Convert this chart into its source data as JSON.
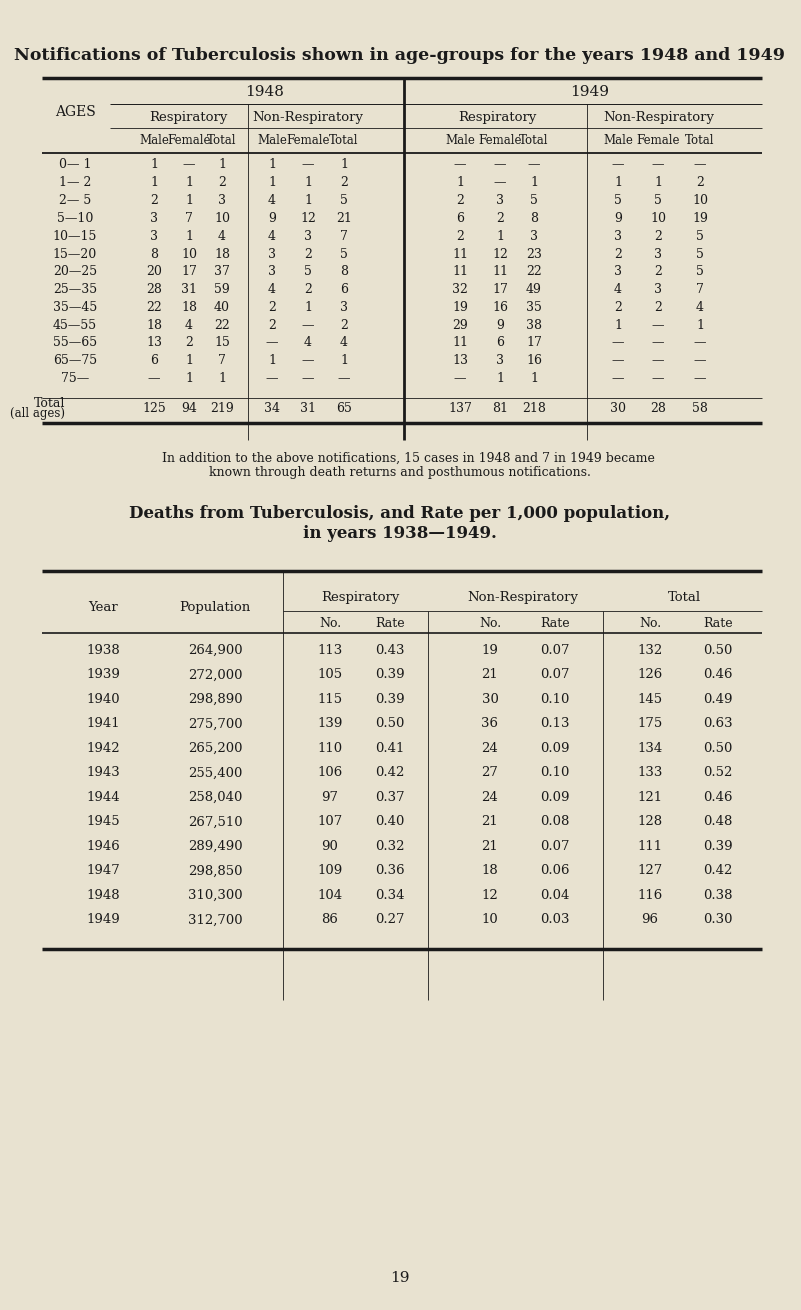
{
  "bg_color": "#e8e2d0",
  "title1": "Notifications of Tuberculosis shown in age-groups for the years 1948 and 1949",
  "title2": "Deaths from Tuberculosis, and Rate per 1,000 population,\nin years 1938—1949.",
  "footnote": "    In addition to the above notifications, 15 cases in 1948 and 7 in 1949 became\nknown through death returns and posthumous notifications.",
  "page_number": "19",
  "table1": {
    "ages": [
      "0— 1",
      "1— 2",
      "2— 5",
      "5—10",
      "10—15",
      "15—20",
      "20—25",
      "25—35",
      "35—45",
      "45—55",
      "55—65",
      "65—75",
      "75—"
    ],
    "data_1948_resp": [
      [
        "1",
        "—",
        "1"
      ],
      [
        "1",
        "1",
        "2"
      ],
      [
        "2",
        "1",
        "3"
      ],
      [
        "3",
        "7",
        "10"
      ],
      [
        "3",
        "1",
        "4"
      ],
      [
        "8",
        "10",
        "18"
      ],
      [
        "20",
        "17",
        "37"
      ],
      [
        "28",
        "31",
        "59"
      ],
      [
        "22",
        "18",
        "40"
      ],
      [
        "18",
        "4",
        "22"
      ],
      [
        "13",
        "2",
        "15"
      ],
      [
        "6",
        "1",
        "7"
      ],
      [
        "—",
        "1",
        "1"
      ]
    ],
    "data_1948_nonresp": [
      [
        "1",
        "—",
        "1"
      ],
      [
        "1",
        "1",
        "2"
      ],
      [
        "4",
        "1",
        "5"
      ],
      [
        "9",
        "12",
        "21"
      ],
      [
        "4",
        "3",
        "7"
      ],
      [
        "3",
        "2",
        "5"
      ],
      [
        "3",
        "5",
        "8"
      ],
      [
        "4",
        "2",
        "6"
      ],
      [
        "2",
        "1",
        "3"
      ],
      [
        "2",
        "—",
        "2"
      ],
      [
        "—",
        "4",
        "4"
      ],
      [
        "1",
        "—",
        "1"
      ],
      [
        "—",
        "—",
        "—"
      ]
    ],
    "data_1949_resp": [
      [
        "—",
        "—",
        "—"
      ],
      [
        "1",
        "—",
        "1"
      ],
      [
        "2",
        "3",
        "5"
      ],
      [
        "6",
        "2",
        "8"
      ],
      [
        "2",
        "1",
        "3"
      ],
      [
        "11",
        "12",
        "23"
      ],
      [
        "11",
        "11",
        "22"
      ],
      [
        "32",
        "17",
        "49"
      ],
      [
        "19",
        "16",
        "35"
      ],
      [
        "29",
        "9",
        "38"
      ],
      [
        "11",
        "6",
        "17"
      ],
      [
        "13",
        "3",
        "16"
      ],
      [
        "—",
        "1",
        "1"
      ]
    ],
    "data_1949_nonresp": [
      [
        "—",
        "—",
        "—"
      ],
      [
        "1",
        "1",
        "2"
      ],
      [
        "5",
        "5",
        "10"
      ],
      [
        "9",
        "10",
        "19"
      ],
      [
        "3",
        "2",
        "5"
      ],
      [
        "2",
        "3",
        "5"
      ],
      [
        "3",
        "2",
        "5"
      ],
      [
        "4",
        "3",
        "7"
      ],
      [
        "2",
        "2",
        "4"
      ],
      [
        "1",
        "—",
        "1"
      ],
      [
        "—",
        "—",
        "—"
      ],
      [
        "—",
        "—",
        "—"
      ],
      [
        "—",
        "—",
        "—"
      ]
    ],
    "total_1948_resp": [
      "125",
      "94",
      "219"
    ],
    "total_1948_nonresp": [
      "34",
      "31",
      "65"
    ],
    "total_1949_resp": [
      "137",
      "81",
      "218"
    ],
    "total_1949_nonresp": [
      "30",
      "28",
      "58"
    ]
  },
  "table2": {
    "years": [
      "1938",
      "1939",
      "1940",
      "1941",
      "1942",
      "1943",
      "1944",
      "1945",
      "1946",
      "1947",
      "1948",
      "1949"
    ],
    "populations": [
      "264,900",
      "272,000",
      "298,890",
      "275,700",
      "265,200",
      "255,400",
      "258,040",
      "267,510",
      "289,490",
      "298,850",
      "310,300",
      "312,700"
    ],
    "resp_no": [
      "113",
      "105",
      "115",
      "139",
      "110",
      "106",
      "97",
      "107",
      "90",
      "109",
      "104",
      "86"
    ],
    "resp_rate": [
      "0.43",
      "0.39",
      "0.39",
      "0.50",
      "0.41",
      "0.42",
      "0.37",
      "0.40",
      "0.32",
      "0.36",
      "0.34",
      "0.27"
    ],
    "nonresp_no": [
      "19",
      "21",
      "30",
      "36",
      "24",
      "27",
      "24",
      "21",
      "21",
      "18",
      "12",
      "10"
    ],
    "nonresp_rate": [
      "0.07",
      "0.07",
      "0.10",
      "0.13",
      "0.09",
      "0.10",
      "0.09",
      "0.08",
      "0.07",
      "0.06",
      "0.04",
      "0.03"
    ],
    "total_no": [
      "132",
      "126",
      "145",
      "175",
      "134",
      "133",
      "121",
      "128",
      "111",
      "127",
      "116",
      "96"
    ],
    "total_rate": [
      "0.50",
      "0.46",
      "0.49",
      "0.63",
      "0.50",
      "0.52",
      "0.46",
      "0.48",
      "0.39",
      "0.42",
      "0.38",
      "0.30"
    ]
  }
}
